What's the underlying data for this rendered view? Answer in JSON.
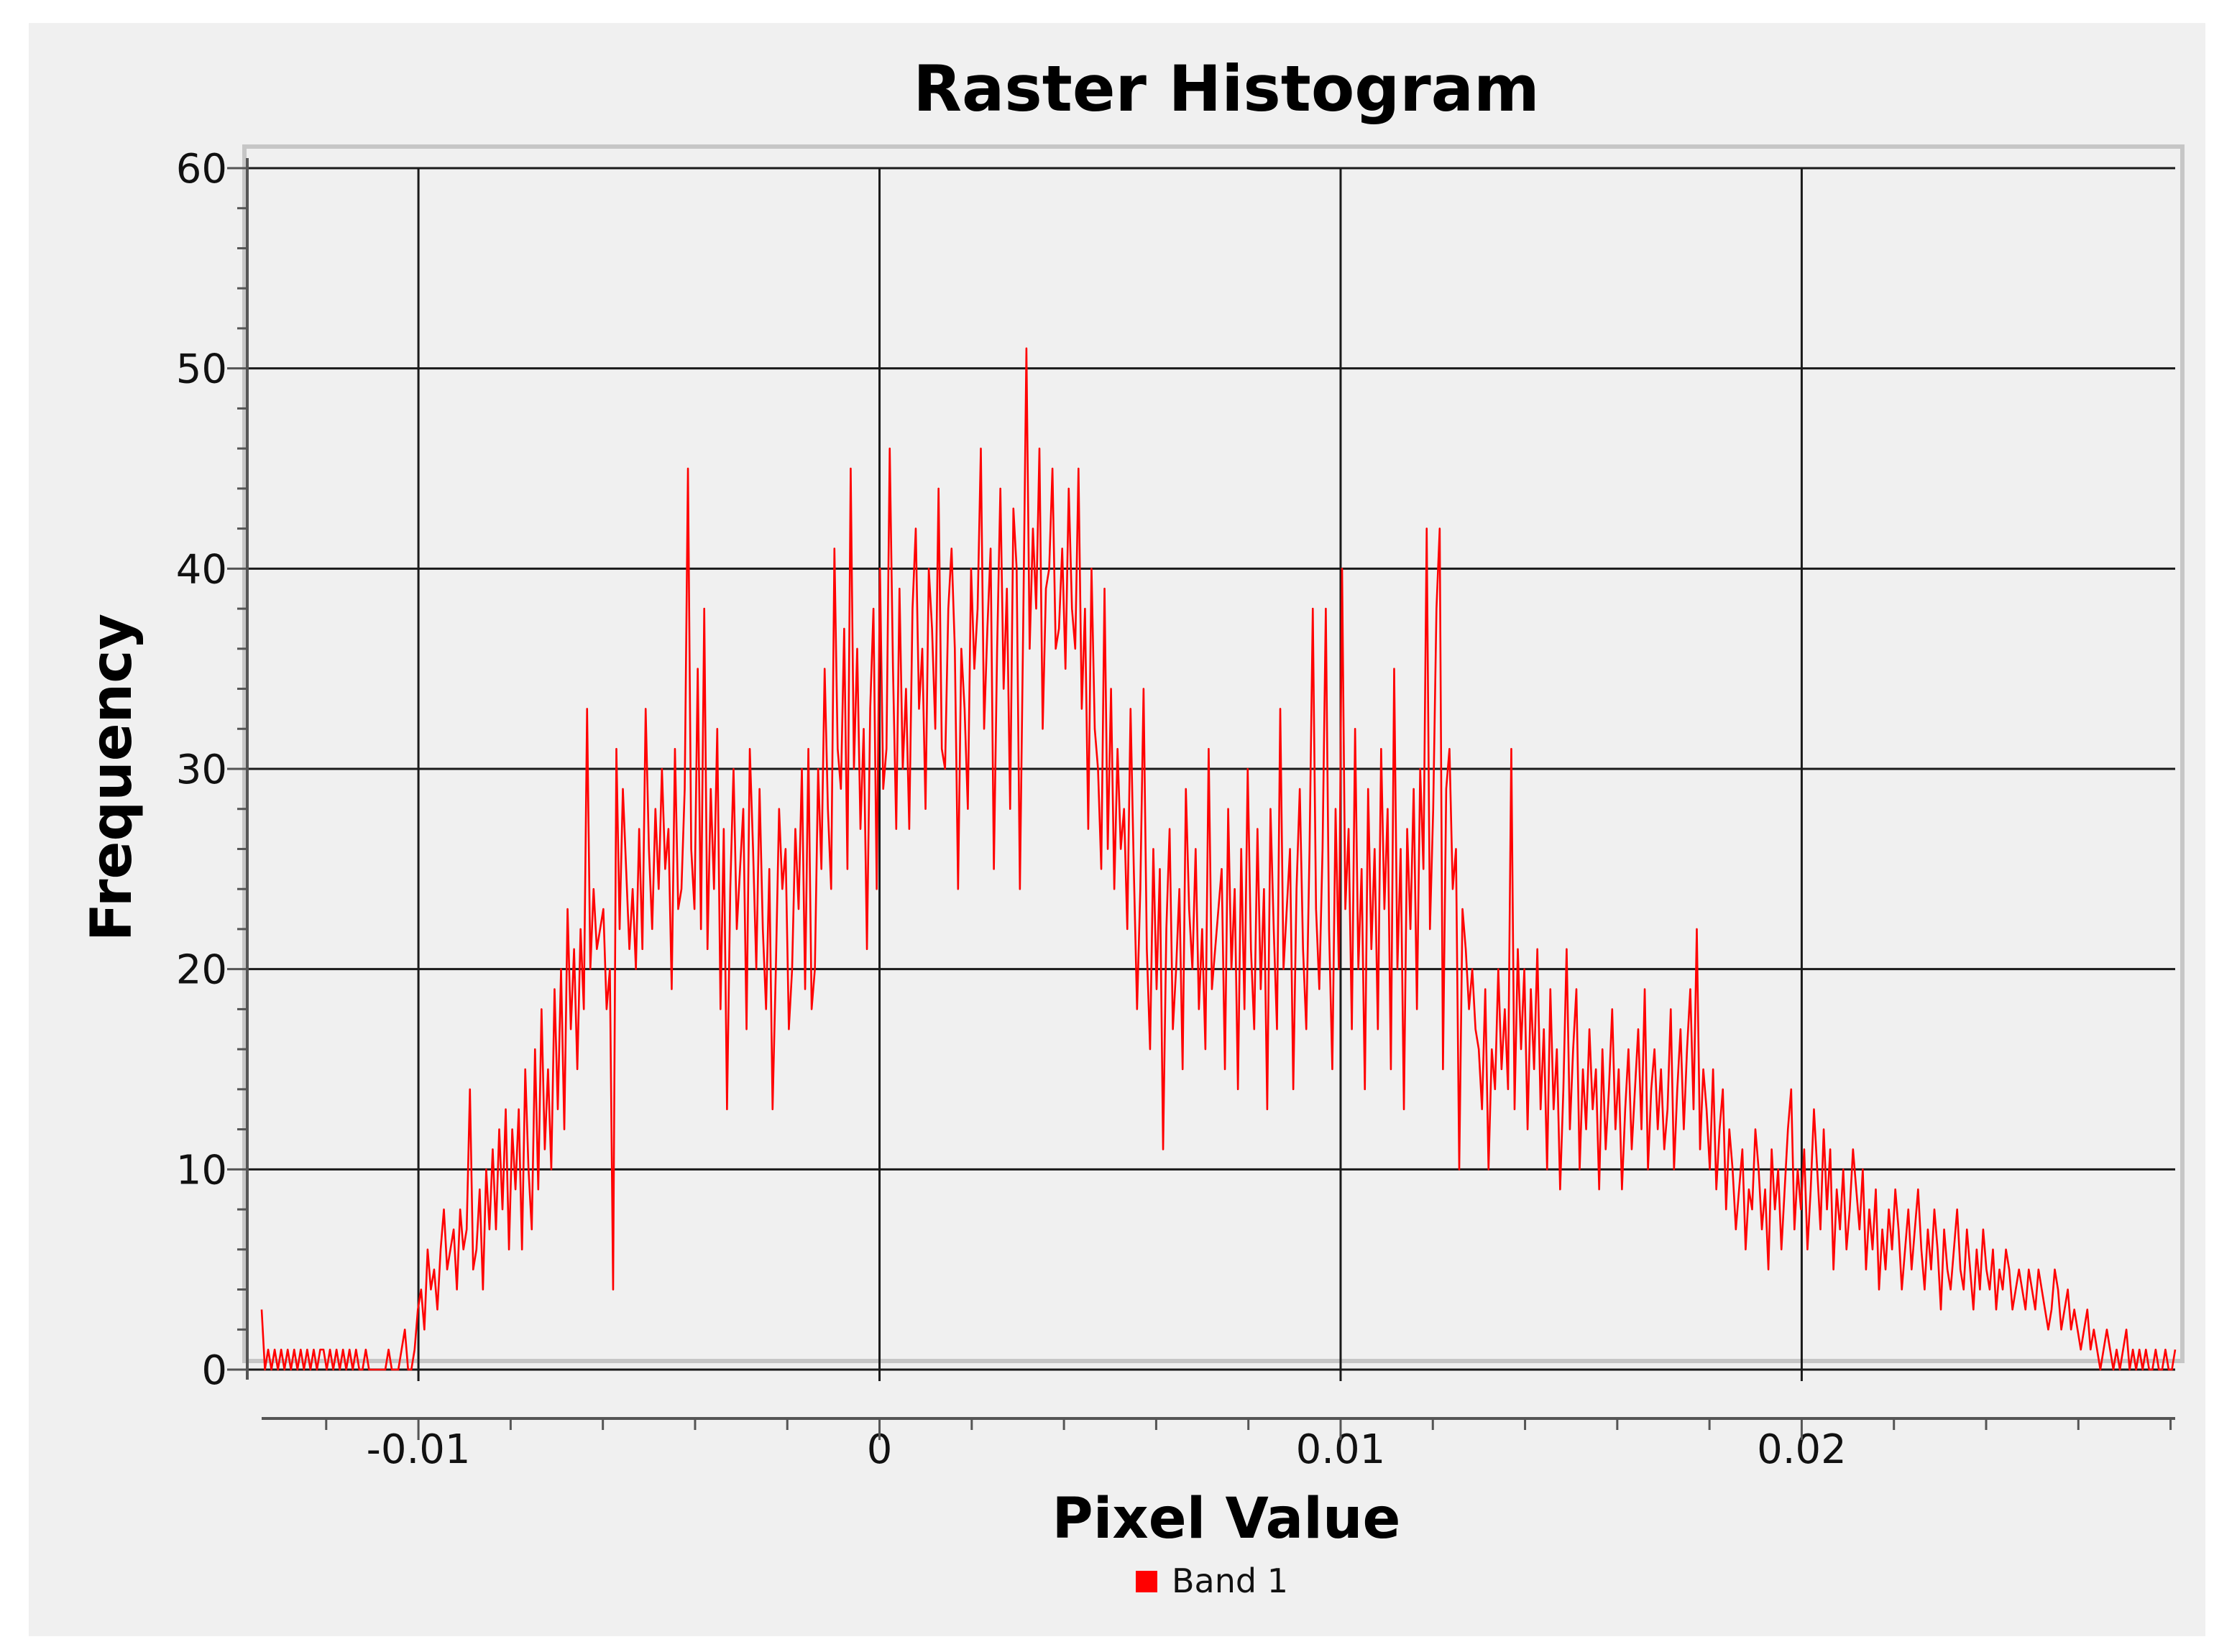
{
  "chart_data": {
    "type": "line",
    "title": "Raster Histogram",
    "xlabel": "Pixel Value",
    "ylabel": "Frequency",
    "xlim": [
      -0.0134,
      0.0281
    ],
    "ylim": [
      0,
      60
    ],
    "x_ticks": [
      -0.01,
      0,
      0.01,
      0.02
    ],
    "x_tick_labels": [
      "-0.01",
      "0",
      "0.01",
      "0.02"
    ],
    "y_ticks": [
      0,
      10,
      20,
      30,
      40,
      50,
      60
    ],
    "y_tick_labels": [
      "0",
      "10",
      "20",
      "30",
      "40",
      "50",
      "60"
    ],
    "grid": true,
    "legend_position": "bottom-center",
    "series": [
      {
        "name": "Band 1",
        "color": "#ff0000",
        "x_start": -0.0134,
        "x_end": 0.0281,
        "values": [
          3,
          0,
          1,
          0,
          1,
          0,
          1,
          0,
          1,
          0,
          1,
          0,
          1,
          0,
          1,
          0,
          1,
          0,
          1,
          1,
          0,
          1,
          0,
          1,
          0,
          1,
          0,
          1,
          0,
          1,
          0,
          0,
          1,
          0,
          0,
          0,
          0,
          0,
          0,
          1,
          0,
          0,
          0,
          1,
          2,
          0,
          0,
          1,
          3,
          4,
          2,
          6,
          4,
          5,
          3,
          6,
          8,
          5,
          6,
          7,
          4,
          8,
          6,
          7,
          14,
          5,
          6,
          9,
          4,
          10,
          7,
          11,
          7,
          12,
          8,
          13,
          6,
          12,
          9,
          13,
          6,
          15,
          10,
          7,
          16,
          9,
          18,
          11,
          15,
          10,
          19,
          13,
          20,
          12,
          23,
          17,
          21,
          15,
          22,
          18,
          33,
          20,
          24,
          21,
          22,
          23,
          18,
          20,
          4,
          31,
          22,
          29,
          25,
          21,
          24,
          20,
          27,
          21,
          33,
          26,
          22,
          28,
          24,
          30,
          25,
          27,
          19,
          31,
          23,
          24,
          29,
          45,
          26,
          23,
          35,
          22,
          38,
          21,
          29,
          24,
          32,
          18,
          27,
          13,
          24,
          30,
          22,
          25,
          28,
          17,
          31,
          26,
          20,
          29,
          22,
          18,
          25,
          13,
          20,
          28,
          24,
          26,
          17,
          20,
          27,
          23,
          30,
          19,
          31,
          18,
          20,
          30,
          25,
          35,
          28,
          24,
          41,
          31,
          29,
          37,
          25,
          45,
          30,
          36,
          27,
          32,
          21,
          33,
          38,
          24,
          40,
          29,
          31,
          46,
          35,
          27,
          39,
          30,
          34,
          27,
          38,
          42,
          33,
          36,
          28,
          40,
          37,
          32,
          44,
          31,
          30,
          38,
          41,
          36,
          24,
          36,
          33,
          28,
          40,
          35,
          38,
          46,
          32,
          37,
          41,
          25,
          36,
          44,
          34,
          39,
          28,
          43,
          40,
          24,
          37,
          51,
          36,
          42,
          38,
          46,
          32,
          39,
          40,
          45,
          36,
          37,
          41,
          35,
          44,
          38,
          36,
          45,
          33,
          38,
          27,
          40,
          32,
          30,
          25,
          39,
          26,
          34,
          24,
          31,
          26,
          28,
          22,
          33,
          25,
          18,
          24,
          34,
          21,
          16,
          26,
          19,
          25,
          11,
          22,
          27,
          17,
          20,
          24,
          15,
          29,
          23,
          20,
          26,
          18,
          22,
          16,
          31,
          19,
          21,
          23,
          25,
          15,
          28,
          20,
          24,
          14,
          26,
          18,
          30,
          21,
          17,
          27,
          19,
          24,
          13,
          28,
          22,
          17,
          33,
          20,
          23,
          26,
          14,
          24,
          29,
          21,
          17,
          26,
          38,
          23,
          19,
          26,
          38,
          22,
          15,
          28,
          20,
          40,
          23,
          27,
          17,
          32,
          20,
          25,
          14,
          29,
          21,
          26,
          17,
          31,
          23,
          28,
          15,
          35,
          20,
          26,
          13,
          27,
          22,
          29,
          18,
          30,
          25,
          42,
          22,
          28,
          38,
          42,
          15,
          29,
          31,
          24,
          26,
          10,
          23,
          21,
          18,
          20,
          17,
          16,
          13,
          19,
          10,
          16,
          14,
          20,
          15,
          18,
          14,
          31,
          13,
          21,
          16,
          20,
          12,
          19,
          15,
          21,
          13,
          17,
          10,
          19,
          13,
          16,
          9,
          14,
          21,
          12,
          16,
          19,
          10,
          15,
          12,
          17,
          13,
          15,
          9,
          16,
          11,
          14,
          18,
          12,
          15,
          9,
          13,
          16,
          11,
          14,
          17,
          12,
          19,
          10,
          14,
          16,
          12,
          15,
          11,
          13,
          18,
          10,
          14,
          17,
          12,
          16,
          19,
          13,
          22,
          11,
          15,
          13,
          10,
          15,
          9,
          12,
          14,
          8,
          12,
          10,
          7,
          9,
          11,
          6,
          9,
          8,
          12,
          10,
          7,
          9,
          5,
          11,
          8,
          10,
          6,
          9,
          12,
          14,
          7,
          10,
          8,
          11,
          6,
          9,
          13,
          10,
          7,
          12,
          8,
          11,
          5,
          9,
          7,
          10,
          6,
          8,
          11,
          9,
          7,
          10,
          5,
          8,
          6,
          9,
          4,
          7,
          5,
          8,
          6,
          9,
          7,
          4,
          6,
          8,
          5,
          7,
          9,
          6,
          4,
          7,
          5,
          8,
          6,
          3,
          7,
          5,
          4,
          6,
          8,
          5,
          4,
          7,
          5,
          3,
          6,
          4,
          7,
          5,
          4,
          6,
          3,
          5,
          4,
          6,
          5,
          3,
          4,
          5,
          4,
          3,
          5,
          4,
          3,
          5,
          4,
          3,
          2,
          3,
          5,
          4,
          2,
          3,
          4,
          2,
          3,
          2,
          1,
          2,
          3,
          1,
          2,
          1,
          0,
          1,
          2,
          1,
          0,
          1,
          0,
          1,
          2,
          0,
          1,
          0,
          1,
          0,
          1,
          0,
          0,
          1,
          0,
          0,
          1,
          0,
          0,
          1
        ]
      }
    ]
  }
}
